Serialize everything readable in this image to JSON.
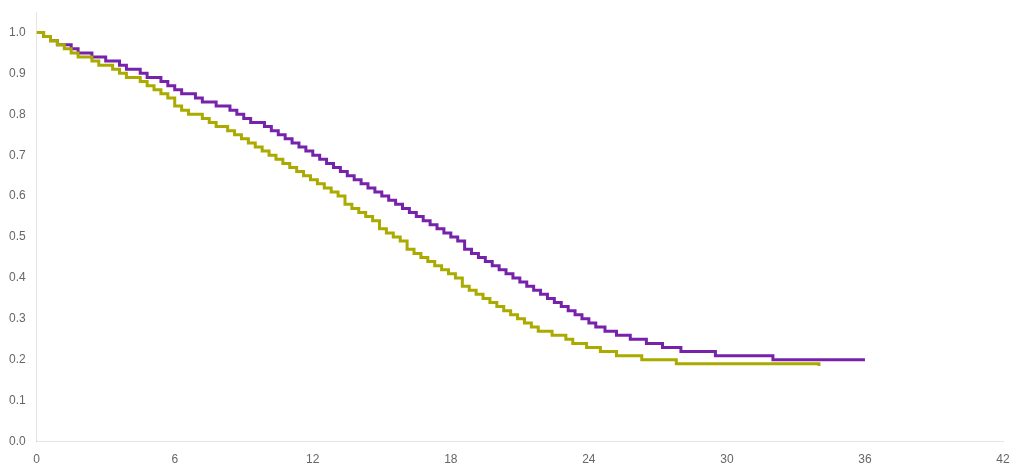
{
  "chart_data": {
    "type": "step",
    "xlim": [
      0,
      42
    ],
    "ylim": [
      0.0,
      1.05
    ],
    "xticks": [
      0,
      6,
      12,
      18,
      24,
      30,
      36,
      42
    ],
    "yticks": [
      {
        "value": 0.0,
        "label": "0.0"
      },
      0.1,
      0.2,
      0.3,
      0.4,
      0.5,
      0.6,
      0.7,
      0.8,
      0.9,
      {
        "value": 1.0,
        "label": "1.0"
      }
    ],
    "grid": false,
    "series": [
      {
        "color": "#aaaa00",
        "x": [
          0,
          0.3,
          0.6,
          0.9,
          1.2,
          1.5,
          1.8,
          2.1,
          2.4,
          2.7,
          3.0,
          3.3,
          3.6,
          3.9,
          4.2,
          4.5,
          4.8,
          5.1,
          5.4,
          5.7,
          6.0,
          6.3,
          6.6,
          6.9,
          7.2,
          7.5,
          7.8,
          8.0,
          8.3,
          8.6,
          8.9,
          9.2,
          9.5,
          9.8,
          10.1,
          10.4,
          10.7,
          11.0,
          11.3,
          11.6,
          11.9,
          12.2,
          12.5,
          12.8,
          13.1,
          13.4,
          13.7,
          14.0,
          14.3,
          14.6,
          14.9,
          15.2,
          15.5,
          15.8,
          16.1,
          16.4,
          16.7,
          17.0,
          17.3,
          17.6,
          17.9,
          18.2,
          18.5,
          18.8,
          19.1,
          19.4,
          19.7,
          20.0,
          20.3,
          20.6,
          20.9,
          21.2,
          21.5,
          21.8,
          22.1,
          22.4,
          22.7,
          23.0,
          23.3,
          23.6,
          23.9,
          24.2,
          24.5,
          24.8,
          25.2,
          25.7,
          26.3,
          27.0,
          27.8,
          28.5,
          29.0,
          29.5,
          30.0,
          31.0,
          32.0,
          33.0,
          34.0
        ],
        "values": [
          1.0,
          0.99,
          0.98,
          0.97,
          0.96,
          0.95,
          0.94,
          0.94,
          0.93,
          0.92,
          0.92,
          0.91,
          0.9,
          0.89,
          0.89,
          0.88,
          0.87,
          0.86,
          0.85,
          0.84,
          0.82,
          0.81,
          0.8,
          0.8,
          0.79,
          0.78,
          0.77,
          0.77,
          0.76,
          0.75,
          0.74,
          0.73,
          0.72,
          0.71,
          0.7,
          0.69,
          0.68,
          0.67,
          0.66,
          0.65,
          0.64,
          0.63,
          0.62,
          0.61,
          0.6,
          0.58,
          0.57,
          0.56,
          0.55,
          0.54,
          0.52,
          0.51,
          0.5,
          0.49,
          0.47,
          0.46,
          0.45,
          0.44,
          0.43,
          0.42,
          0.41,
          0.4,
          0.38,
          0.37,
          0.36,
          0.35,
          0.34,
          0.33,
          0.32,
          0.31,
          0.3,
          0.29,
          0.28,
          0.27,
          0.27,
          0.26,
          0.26,
          0.25,
          0.24,
          0.24,
          0.23,
          0.23,
          0.22,
          0.22,
          0.21,
          0.21,
          0.2,
          0.2,
          0.19,
          0.19,
          0.19,
          0.19,
          0.19,
          0.19,
          0.19,
          0.19,
          0.185
        ]
      },
      {
        "color": "#7722aa",
        "x": [
          0,
          0.3,
          0.6,
          0.9,
          1.2,
          1.5,
          1.8,
          2.1,
          2.4,
          2.7,
          3.0,
          3.3,
          3.6,
          3.9,
          4.2,
          4.5,
          4.8,
          5.1,
          5.4,
          5.7,
          6.0,
          6.3,
          6.6,
          6.9,
          7.2,
          7.5,
          7.8,
          8.1,
          8.4,
          8.7,
          9.0,
          9.3,
          9.6,
          9.9,
          10.2,
          10.5,
          10.8,
          11.1,
          11.4,
          11.7,
          12.0,
          12.3,
          12.6,
          12.9,
          13.2,
          13.5,
          13.8,
          14.1,
          14.4,
          14.7,
          15.0,
          15.3,
          15.6,
          15.9,
          16.2,
          16.5,
          16.8,
          17.1,
          17.4,
          17.7,
          18.0,
          18.3,
          18.6,
          18.9,
          19.2,
          19.5,
          19.8,
          20.1,
          20.4,
          20.7,
          21.0,
          21.3,
          21.6,
          21.9,
          22.2,
          22.5,
          22.8,
          23.1,
          23.4,
          23.7,
          24.0,
          24.3,
          24.7,
          25.2,
          25.8,
          26.5,
          27.2,
          28.0,
          28.8,
          29.5,
          30.0,
          31.0,
          32.0,
          33.0,
          34.0,
          35.0,
          36.0
        ],
        "values": [
          1.0,
          0.99,
          0.98,
          0.97,
          0.97,
          0.96,
          0.95,
          0.95,
          0.94,
          0.94,
          0.93,
          0.93,
          0.92,
          0.91,
          0.91,
          0.9,
          0.89,
          0.89,
          0.88,
          0.87,
          0.86,
          0.85,
          0.85,
          0.84,
          0.83,
          0.83,
          0.82,
          0.82,
          0.81,
          0.8,
          0.79,
          0.78,
          0.78,
          0.77,
          0.76,
          0.75,
          0.74,
          0.73,
          0.72,
          0.71,
          0.7,
          0.69,
          0.68,
          0.67,
          0.66,
          0.65,
          0.64,
          0.63,
          0.62,
          0.61,
          0.6,
          0.59,
          0.58,
          0.57,
          0.56,
          0.55,
          0.54,
          0.53,
          0.52,
          0.51,
          0.5,
          0.49,
          0.47,
          0.46,
          0.45,
          0.44,
          0.43,
          0.42,
          0.41,
          0.4,
          0.39,
          0.38,
          0.37,
          0.36,
          0.35,
          0.34,
          0.33,
          0.32,
          0.31,
          0.3,
          0.29,
          0.28,
          0.27,
          0.26,
          0.25,
          0.24,
          0.23,
          0.22,
          0.22,
          0.21,
          0.21,
          0.21,
          0.2,
          0.2,
          0.2,
          0.2,
          0.2
        ]
      }
    ]
  }
}
